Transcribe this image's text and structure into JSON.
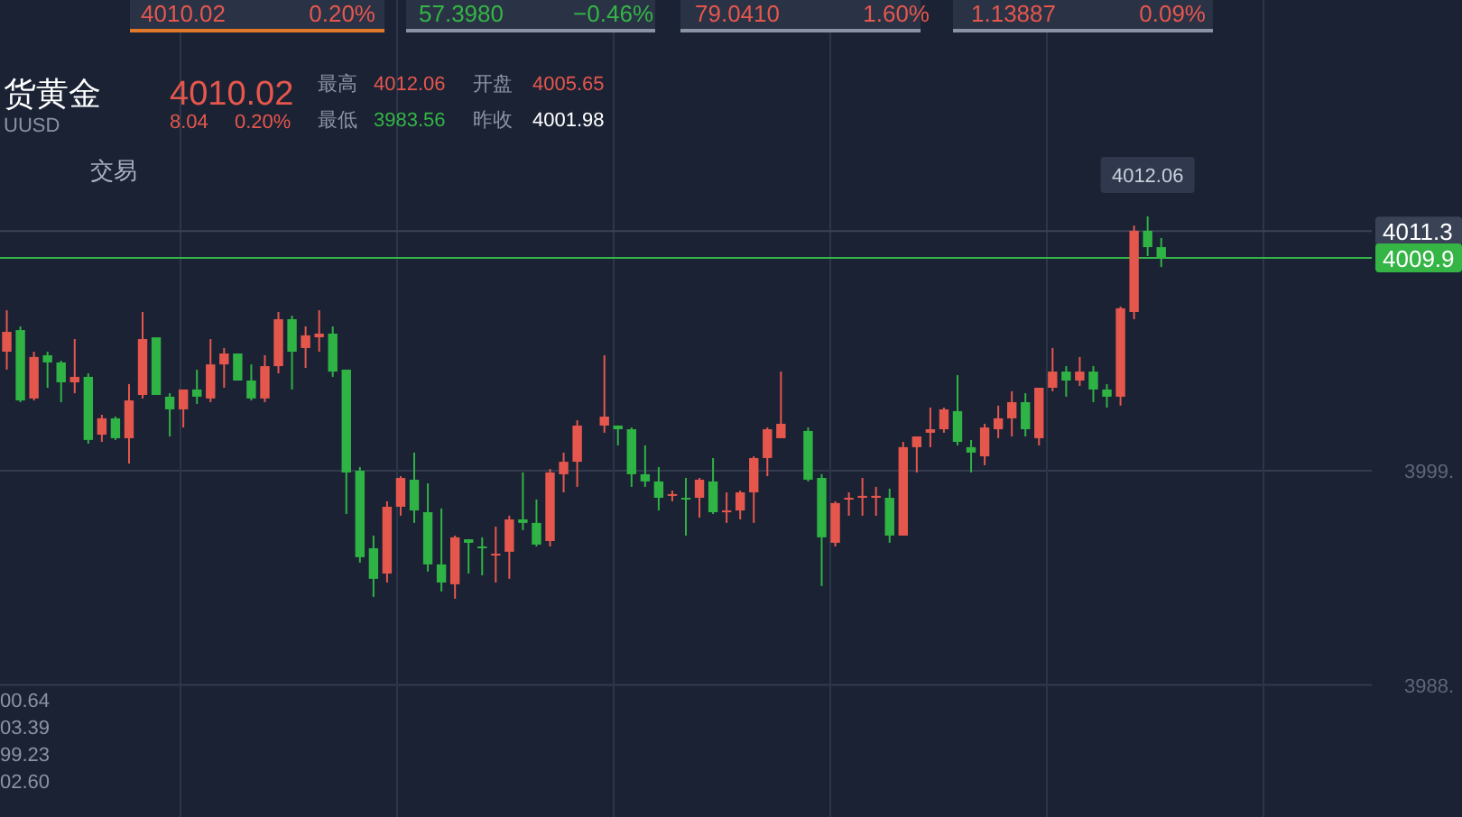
{
  "chart_data": {
    "type": "candlestick",
    "categories": [
      null,
      null,
      null,
      null,
      null,
      null,
      null,
      null,
      null,
      null,
      null,
      null,
      null,
      null,
      null,
      null,
      null,
      null,
      null,
      null,
      null,
      null,
      null,
      null,
      null,
      null,
      null,
      null,
      null,
      null,
      null,
      null,
      null,
      null,
      null,
      null,
      null,
      null,
      null,
      null,
      null,
      null,
      null,
      null,
      null,
      null,
      null,
      null,
      null,
      null,
      null,
      null,
      null,
      null,
      null,
      null,
      null,
      null,
      null,
      null,
      null,
      null,
      null,
      null,
      null,
      null,
      null,
      null,
      null,
      null,
      null,
      null,
      null,
      null,
      null,
      null,
      null,
      null,
      null,
      null,
      null,
      null,
      null,
      null,
      null,
      null,
      null,
      null,
      null,
      null,
      null,
      null,
      null,
      null,
      null,
      null,
      null,
      null,
      null,
      null,
      null
    ],
    "ohlc": [
      [
        4005.11,
        4007.24,
        4004.19,
        4006.13
      ],
      [
        4006.22,
        4006.41,
        4002.52,
        4002.61
      ],
      [
        4002.71,
        4005.11,
        4002.61,
        4004.84
      ],
      [
        4004.93,
        4005.11,
        4003.26,
        4004.56
      ],
      [
        4004.56,
        4004.65,
        4002.52,
        4003.54
      ],
      [
        4003.54,
        4005.76,
        4002.98,
        4003.82
      ],
      [
        4003.82,
        4004.0,
        4000.39,
        4000.58
      ],
      [
        4000.85,
        4001.87,
        4000.48,
        4001.69
      ],
      [
        4001.69,
        4001.78,
        4000.58,
        4000.67
      ],
      [
        4000.67,
        4003.45,
        3999.37,
        4002.61
      ],
      [
        4002.89,
        4007.15,
        4002.71,
        4005.76
      ],
      [
        4005.85,
        4005.85,
        4002.89,
        4002.89
      ],
      [
        4002.8,
        4002.98,
        4000.76,
        4002.15
      ],
      [
        4002.15,
        4003.17,
        4001.22,
        4003.17
      ],
      [
        4003.17,
        4004.19,
        4002.43,
        4002.8
      ],
      [
        4002.71,
        4005.76,
        4002.52,
        4004.46
      ],
      [
        4004.46,
        4005.3,
        4003.26,
        4005.02
      ],
      [
        4005.02,
        4005.02,
        4003.63,
        4003.63
      ],
      [
        4003.63,
        4004.46,
        4002.61,
        4002.71
      ],
      [
        4002.71,
        4004.93,
        4002.52,
        4004.37
      ],
      [
        4004.37,
        4007.15,
        4004.0,
        4006.78
      ],
      [
        4006.78,
        4006.96,
        4003.17,
        4005.11
      ],
      [
        4005.3,
        4006.41,
        4004.28,
        4005.95
      ],
      [
        4005.85,
        4007.24,
        4005.11,
        4006.04
      ],
      [
        4006.04,
        4006.41,
        4003.82,
        4004.09
      ],
      [
        4004.19,
        4004.19,
        3996.78,
        3998.91
      ],
      [
        3999.0,
        3999.19,
        3994.28,
        3994.56
      ],
      [
        3995.02,
        3995.67,
        3992.52,
        3993.45
      ],
      [
        3993.72,
        3997.43,
        3993.26,
        3997.15
      ],
      [
        3997.15,
        3998.72,
        3996.69,
        3998.63
      ],
      [
        3998.54,
        3999.93,
        3996.32,
        3996.96
      ],
      [
        3996.87,
        3998.35,
        3993.82,
        3994.19
      ],
      [
        3994.19,
        3997.06,
        3992.8,
        3993.26
      ],
      [
        3993.17,
        3995.67,
        3992.43,
        3995.58
      ],
      [
        3995.48,
        3995.48,
        3993.72,
        3995.3
      ],
      [
        3995.11,
        3995.58,
        3993.63,
        3995.02
      ],
      [
        3994.65,
        3996.13,
        3993.26,
        3994.74
      ],
      [
        3994.84,
        3996.69,
        3993.45,
        3996.5
      ],
      [
        3996.5,
        3998.91,
        3995.95,
        3996.32
      ],
      [
        3996.32,
        3997.52,
        3995.11,
        3995.21
      ],
      [
        3995.39,
        3999.09,
        3995.11,
        3998.91
      ],
      [
        3998.82,
        3999.93,
        3997.89,
        3999.46
      ],
      [
        3999.46,
        4001.59,
        3998.17,
        4001.32
      ],
      null,
      [
        4001.32,
        4004.93,
        4000.95,
        4001.78
      ],
      [
        4001.32,
        4001.32,
        4000.3,
        4001.13
      ],
      [
        4001.13,
        4001.22,
        3998.17,
        3998.82
      ],
      [
        3998.82,
        4000.3,
        3998.17,
        3998.45
      ],
      [
        3998.45,
        3999.19,
        3996.96,
        3997.61
      ],
      [
        3997.71,
        3997.98,
        3997.43,
        3997.8
      ],
      [
        3997.61,
        3998.63,
        3995.67,
        3997.52
      ],
      [
        3997.61,
        3998.63,
        3996.59,
        3998.54
      ],
      [
        3998.45,
        3999.65,
        3996.78,
        3996.87
      ],
      [
        3996.87,
        3997.89,
        3996.32,
        3996.96
      ],
      [
        3996.96,
        3997.98,
        3996.5,
        3997.89
      ],
      [
        3997.89,
        3999.74,
        3996.32,
        3999.65
      ],
      [
        3999.65,
        4001.22,
        3998.72,
        4001.13
      ],
      [
        4000.67,
        4004.09,
        4000.67,
        4001.41
      ],
      null,
      [
        4001.04,
        4001.22,
        3998.45,
        3998.54
      ],
      [
        3998.63,
        3998.82,
        3993.08,
        3995.58
      ],
      [
        3995.3,
        3997.43,
        3995.11,
        3997.34
      ],
      [
        3997.52,
        3997.89,
        3996.69,
        3997.61
      ],
      [
        3997.61,
        3998.63,
        3996.69,
        3997.71
      ],
      [
        3997.61,
        3998.17,
        3996.69,
        3997.71
      ],
      [
        3997.61,
        3998.08,
        3995.3,
        3995.67
      ],
      [
        3995.67,
        4000.48,
        3995.67,
        4000.21
      ],
      [
        4000.21,
        4000.76,
        3998.91,
        4000.76
      ],
      [
        4000.95,
        4002.24,
        4000.21,
        4001.13
      ],
      [
        4001.13,
        4002.24,
        4000.95,
        4002.15
      ],
      [
        4002.06,
        4003.91,
        4000.3,
        4000.48
      ],
      [
        4000.21,
        4000.58,
        3998.91,
        3999.93
      ],
      [
        3999.74,
        4001.41,
        3999.28,
        4001.22
      ],
      [
        4001.13,
        4002.34,
        4000.67,
        4001.69
      ],
      [
        4001.69,
        4003.08,
        4000.76,
        4002.52
      ],
      [
        4002.52,
        4002.98,
        4000.76,
        4001.13
      ],
      [
        4000.67,
        4003.26,
        4000.3,
        4003.26
      ],
      [
        4003.26,
        4005.3,
        4003.08,
        4004.09
      ],
      [
        4004.09,
        4004.37,
        4002.8,
        4003.63
      ],
      [
        4003.63,
        4004.84,
        4003.35,
        4004.09
      ],
      [
        4004.09,
        4004.37,
        4002.52,
        4003.17
      ],
      [
        4003.17,
        4003.45,
        4002.24,
        4002.8
      ],
      [
        4002.8,
        4007.43,
        4002.34,
        4007.34
      ],
      [
        4007.15,
        4011.59,
        4006.78,
        4011.32
      ],
      [
        4011.32,
        4012.06,
        4010.02,
        4010.48
      ],
      [
        4010.48,
        4010.95,
        4009.46,
        4009.93
      ],
      null,
      null,
      null,
      null,
      null,
      null,
      null,
      null,
      null,
      null,
      null,
      null,
      null,
      null,
      null
    ],
    "colors": [
      "#e5574d",
      "#2fb344",
      "#e5574d",
      "#2fb344",
      "#2fb344",
      "#e5574d",
      "#2fb344",
      "#e5574d",
      "#2fb344",
      "#e5574d",
      "#e5574d",
      "#2fb344",
      "#2fb344",
      "#e5574d",
      "#2fb344",
      "#e5574d",
      "#e5574d",
      "#2fb344",
      "#2fb344",
      "#e5574d",
      "#e5574d",
      "#2fb344",
      "#e5574d",
      "#e5574d",
      "#2fb344",
      "#2fb344",
      "#2fb344",
      "#2fb344",
      "#e5574d",
      "#e5574d",
      "#2fb344",
      "#2fb344",
      "#2fb344",
      "#e5574d",
      "#2fb344",
      "#2fb344",
      "#e5574d",
      "#e5574d",
      "#2fb344",
      "#2fb344",
      "#e5574d",
      "#e5574d",
      "#e5574d",
      null,
      "#e5574d",
      "#2fb344",
      "#2fb344",
      "#2fb344",
      "#2fb344",
      "#e5574d",
      "#2fb344",
      "#e5574d",
      "#2fb344",
      "#e5574d",
      "#e5574d",
      "#e5574d",
      "#e5574d",
      "#e5574d",
      null,
      "#2fb344",
      "#2fb344",
      "#e5574d",
      "#e5574d",
      "#e5574d",
      "#e5574d",
      "#2fb344",
      "#e5574d",
      "#e5574d",
      "#e5574d",
      "#e5574d",
      "#2fb344",
      "#2fb344",
      "#e5574d",
      "#e5574d",
      "#e5574d",
      "#2fb344",
      "#e5574d",
      "#e5574d",
      "#2fb344",
      "#e5574d",
      "#2fb344",
      "#2fb344",
      "#e5574d",
      "#e5574d",
      "#2fb344",
      "#2fb344",
      null,
      null,
      null,
      null,
      null,
      null,
      null,
      null,
      null,
      null,
      null,
      null,
      null,
      null,
      null
    ],
    "ylim": [
      3981.22,
      4023.17
    ],
    "yticks": [
      {
        "value": 3988,
        "label": "3988."
      },
      {
        "value": 3999,
        "label": "3999."
      }
    ],
    "tick_labels": "y",
    "grid": true,
    "ref_lines": [
      {
        "axis": "y",
        "value": 4011.3,
        "label": "4011.3",
        "color": "#3a4356"
      },
      {
        "axis": "y",
        "value": 4009.93,
        "label": "4009.9",
        "color": "#34b545"
      }
    ],
    "annotations": [
      "4010.02",
      "0.20%",
      "57.3980",
      "−0.46%",
      "79.0410",
      "1.60%",
      "1.13887",
      "0.09%",
      "货黄金",
      "UUSD",
      "4010.02",
      "8.04",
      "0.20%",
      "最高",
      "4012.06",
      "开盘",
      "4005.65",
      "最低",
      "3983.56",
      "昨收",
      "4001.98",
      "交易",
      "00.64",
      "03.39",
      "99.23",
      "02.60",
      "4012.06"
    ]
  }
}
